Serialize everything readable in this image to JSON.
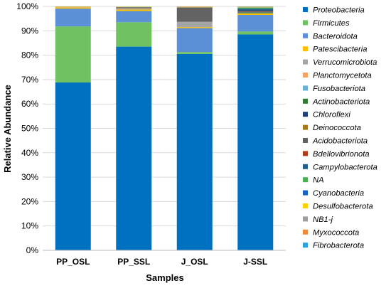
{
  "chart_data": {
    "type": "bar",
    "stacked": true,
    "xlabel": "Samples",
    "ylabel": "Relative Abundance",
    "ylim": [
      0,
      100
    ],
    "yticks": [
      "0%",
      "10%",
      "20%",
      "30%",
      "40%",
      "50%",
      "60%",
      "70%",
      "80%",
      "90%",
      "100%"
    ],
    "grid": true,
    "legend_position": "right",
    "categories": [
      "PP_OSL",
      "PP_SSL",
      "J_OSL",
      "J-SSL"
    ],
    "series": [
      {
        "name": "Proteobacteria",
        "color": "#0070c0",
        "values": [
          68.8,
          83.5,
          80.5,
          88.5
        ]
      },
      {
        "name": "Firmicutes",
        "color": "#70c15f",
        "values": [
          23.0,
          10.0,
          0.8,
          1.2
        ]
      },
      {
        "name": "Bacteroidota",
        "color": "#5b8fd6",
        "values": [
          7.3,
          4.6,
          9.8,
          6.8
        ]
      },
      {
        "name": "Patescibacteria",
        "color": "#ffc000",
        "values": [
          0.5,
          0.6,
          0.4,
          0.6
        ]
      },
      {
        "name": "Verrucomicrobiota",
        "color": "#a5a5a5",
        "values": [
          0.1,
          0.3,
          2.2,
          0.1
        ]
      },
      {
        "name": "Planctomycetota",
        "color": "#f4a460",
        "values": [
          0.0,
          0.1,
          0.0,
          0.0
        ]
      },
      {
        "name": "Fusobacteriota",
        "color": "#6baed6",
        "values": [
          0.0,
          0.0,
          0.0,
          0.0
        ]
      },
      {
        "name": "Actinobacteriota",
        "color": "#2e7d32",
        "values": [
          0.0,
          0.1,
          0.0,
          0.3
        ]
      },
      {
        "name": "Chloroflexi",
        "color": "#1f3f7a",
        "values": [
          0.0,
          0.0,
          0.0,
          0.1
        ]
      },
      {
        "name": "Deinococcota",
        "color": "#a6761d",
        "values": [
          0.0,
          0.1,
          0.0,
          0.0
        ]
      },
      {
        "name": "Acidobacteriota",
        "color": "#636363",
        "values": [
          0.0,
          0.2,
          5.8,
          0.3
        ]
      },
      {
        "name": "Bdellovibrionota",
        "color": "#b23a16",
        "values": [
          0.0,
          0.1,
          0.1,
          0.2
        ]
      },
      {
        "name": "Campylobacterota",
        "color": "#1f5f8b",
        "values": [
          0.0,
          0.1,
          0.0,
          1.0
        ]
      },
      {
        "name": "NA",
        "color": "#4caf50",
        "values": [
          0.1,
          0.1,
          0.1,
          0.4
        ]
      },
      {
        "name": "Cyanobacteria",
        "color": "#1565c0",
        "values": [
          0.0,
          0.0,
          0.0,
          0.1
        ]
      },
      {
        "name": "Desulfobacterota",
        "color": "#ffd000",
        "values": [
          0.1,
          0.1,
          0.1,
          0.2
        ]
      },
      {
        "name": "NB1-j",
        "color": "#9e9e9e",
        "values": [
          0.0,
          0.0,
          0.1,
          0.0
        ]
      },
      {
        "name": "Myxococcota",
        "color": "#ef8a3a",
        "values": [
          0.1,
          0.0,
          0.1,
          0.1
        ]
      },
      {
        "name": "Fibrobacterota",
        "color": "#29a3d9",
        "values": [
          0.0,
          0.0,
          0.0,
          0.1
        ]
      }
    ]
  }
}
